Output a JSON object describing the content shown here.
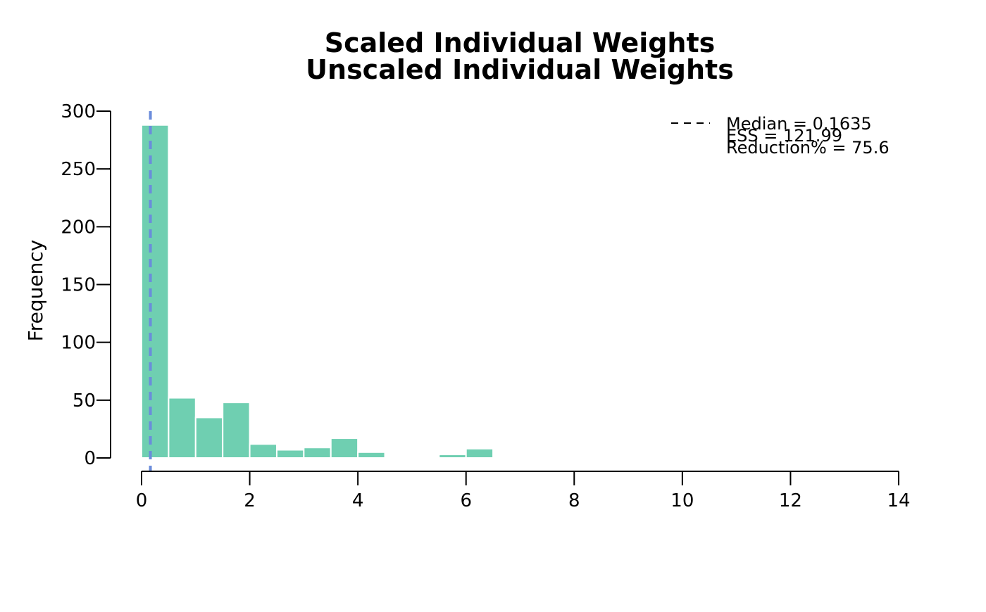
{
  "chart_data": {
    "type": "bar",
    "title": "Scaled Individual Weights",
    "subtitle": "Unscaled Individual Weights",
    "xlabel": "",
    "ylabel": "Frequency",
    "xlim": [
      0,
      14
    ],
    "ylim": [
      0,
      300
    ],
    "x_ticks": [
      0,
      2,
      4,
      6,
      8,
      10,
      12,
      14
    ],
    "y_ticks": [
      0,
      50,
      100,
      150,
      200,
      250,
      300
    ],
    "bin_width": 0.5,
    "bins": [
      {
        "start": 0.0,
        "end": 0.5,
        "count": 288
      },
      {
        "start": 0.5,
        "end": 1.0,
        "count": 52
      },
      {
        "start": 1.0,
        "end": 1.5,
        "count": 35
      },
      {
        "start": 1.5,
        "end": 2.0,
        "count": 48
      },
      {
        "start": 2.0,
        "end": 2.5,
        "count": 12
      },
      {
        "start": 2.5,
        "end": 3.0,
        "count": 7
      },
      {
        "start": 3.0,
        "end": 3.5,
        "count": 9
      },
      {
        "start": 3.5,
        "end": 4.0,
        "count": 17
      },
      {
        "start": 4.0,
        "end": 4.5,
        "count": 5
      },
      {
        "start": 4.5,
        "end": 5.0,
        "count": 0
      },
      {
        "start": 5.0,
        "end": 5.5,
        "count": 0
      },
      {
        "start": 5.5,
        "end": 6.0,
        "count": 3
      },
      {
        "start": 6.0,
        "end": 6.5,
        "count": 8
      },
      {
        "start": 12.0,
        "end": 12.5,
        "count": 1
      },
      {
        "start": 13.5,
        "end": 14.0,
        "count": 1
      }
    ],
    "median_line": {
      "value": 0.1635,
      "color": "#6b8cdb",
      "style": "dashed"
    },
    "bar_color": "#6fcfb1",
    "bar_edge_color": "#ffffff",
    "legend": {
      "placement": "top-right",
      "lines": [
        "Median = 0.1635",
        "ESS = 121.99",
        "Reduction% = 75.6"
      ]
    },
    "grid": false
  }
}
